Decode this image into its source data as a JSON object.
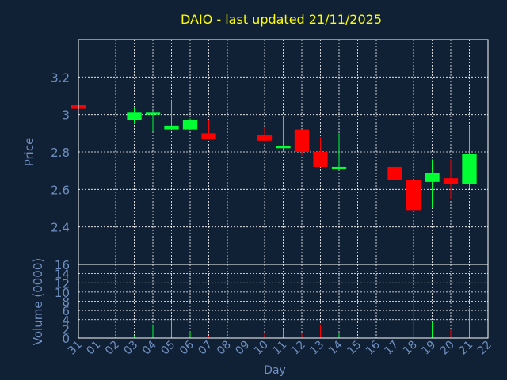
{
  "chart_data": {
    "type": "candlestick",
    "title": "DAIO - last updated 21/11/2025",
    "xlabel": "Day",
    "ylabel_price": "Price",
    "ylabel_volume": "Volume (0000)",
    "x_tick_labels": [
      "31",
      "01",
      "02",
      "03",
      "04",
      "05",
      "06",
      "07",
      "08",
      "09",
      "10",
      "11",
      "12",
      "13",
      "14",
      "15",
      "16",
      "17",
      "18",
      "19",
      "20",
      "21",
      "22"
    ],
    "price_ticks": [
      2.4,
      2.6,
      2.8,
      3,
      3.2
    ],
    "price_ylim": [
      2.2,
      3.4
    ],
    "volume_ticks": [
      0,
      2,
      4,
      6,
      8,
      10,
      12,
      14,
      16
    ],
    "volume_ylim": [
      0,
      16
    ],
    "grid": true,
    "colors": {
      "up": "#00ff33",
      "down": "#ff0000",
      "title": "#ffff00",
      "axis_text": "#7090c0",
      "background": "#102035",
      "grid": "#ffffff"
    },
    "candles": [
      {
        "day": "31",
        "open": 3.05,
        "high": 3.05,
        "low": 3.03,
        "close": 3.03,
        "volume": 0
      },
      {
        "day": "03",
        "open": 2.97,
        "high": 3.04,
        "low": 2.95,
        "close": 3.01,
        "volume": 0.3
      },
      {
        "day": "04",
        "open": 3.0,
        "high": 3.02,
        "low": 2.91,
        "close": 3.01,
        "volume": 3
      },
      {
        "day": "05",
        "open": 2.92,
        "high": 3.08,
        "low": 2.92,
        "close": 2.94,
        "volume": 4
      },
      {
        "day": "06",
        "open": 2.92,
        "high": 2.98,
        "low": 2.92,
        "close": 2.97,
        "volume": 1.5
      },
      {
        "day": "07",
        "open": 2.9,
        "high": 2.97,
        "low": 2.87,
        "close": 2.87,
        "volume": 0.3
      },
      {
        "day": "10",
        "open": 2.89,
        "high": 2.93,
        "low": 2.85,
        "close": 2.86,
        "volume": 1
      },
      {
        "day": "11",
        "open": 2.82,
        "high": 2.99,
        "low": 2.8,
        "close": 2.83,
        "volume": 2
      },
      {
        "day": "12",
        "open": 2.92,
        "high": 2.92,
        "low": 2.78,
        "close": 2.8,
        "volume": 1
      },
      {
        "day": "13",
        "open": 2.8,
        "high": 2.88,
        "low": 2.72,
        "close": 2.72,
        "volume": 3
      },
      {
        "day": "14",
        "open": 2.71,
        "high": 2.9,
        "low": 2.71,
        "close": 2.72,
        "volume": 1
      },
      {
        "day": "17",
        "open": 2.72,
        "high": 2.85,
        "low": 2.64,
        "close": 2.65,
        "volume": 2
      },
      {
        "day": "18",
        "open": 2.65,
        "high": 2.65,
        "low": 2.49,
        "close": 2.49,
        "volume": 8
      },
      {
        "day": "19",
        "open": 2.64,
        "high": 2.76,
        "low": 2.5,
        "close": 2.69,
        "volume": 3.5
      },
      {
        "day": "20",
        "open": 2.66,
        "high": 2.76,
        "low": 2.55,
        "close": 2.63,
        "volume": 2
      },
      {
        "day": "21",
        "open": 2.63,
        "high": 2.94,
        "low": 2.61,
        "close": 2.79,
        "volume": 6.5
      }
    ]
  }
}
